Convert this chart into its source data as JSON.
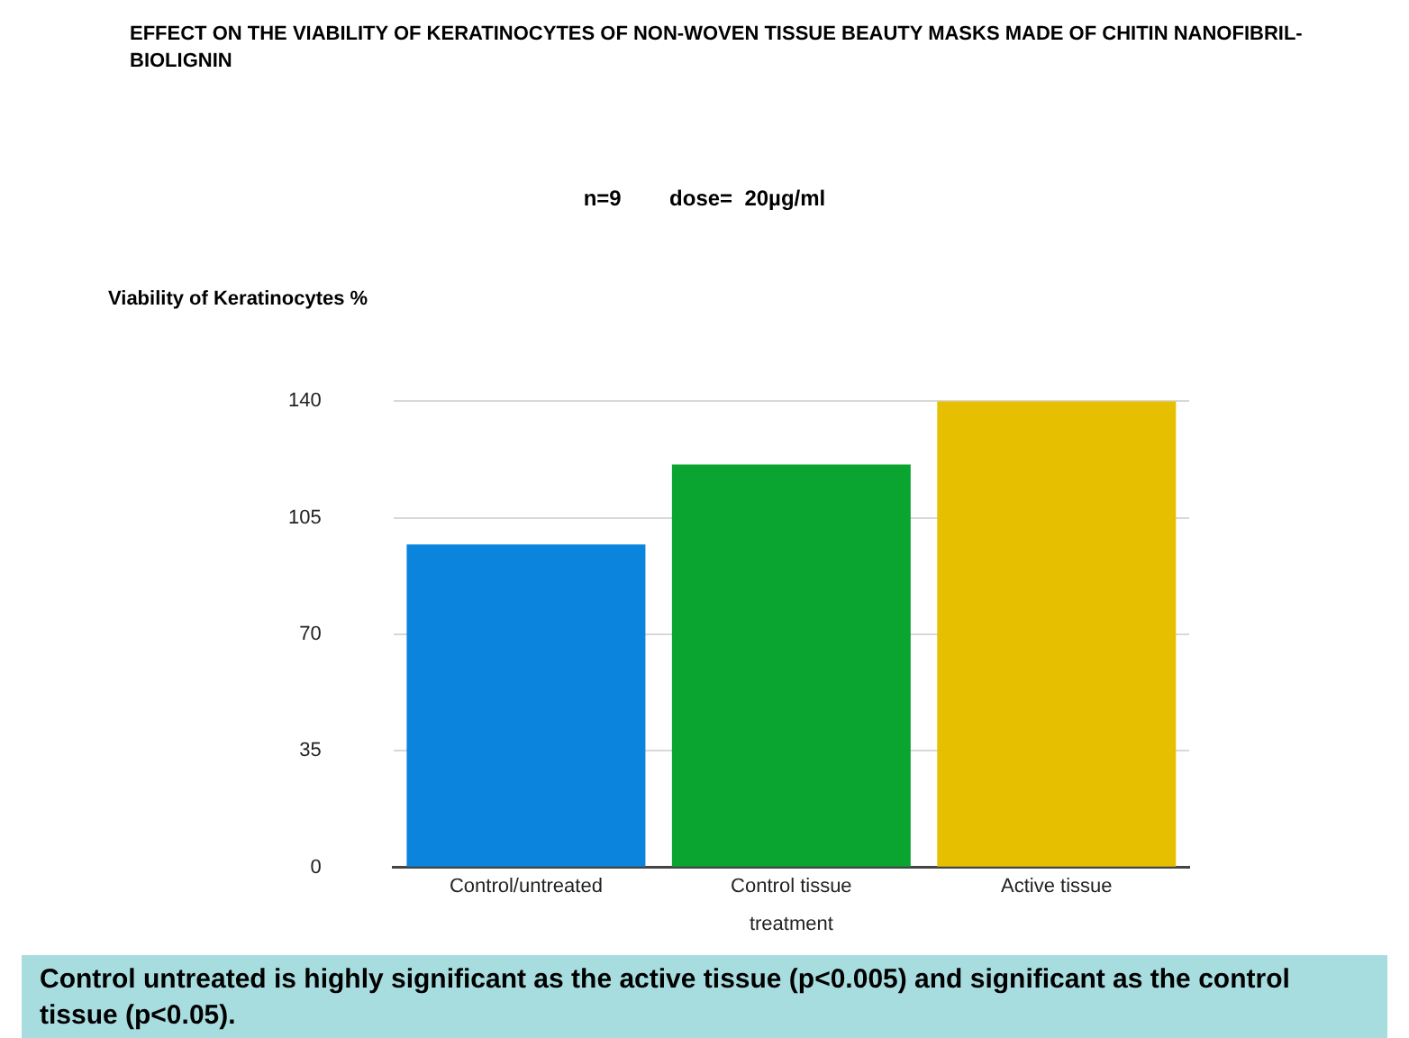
{
  "chart_data": {
    "type": "bar",
    "title": "EFFECT ON THE VIABILITY OF KERATINOCYTES OF NON-WOVEN TISSUE BEAUTY MASKS MADE OF CHITIN NANOFIBRIL-BIOLIGNIN",
    "subtitle": "n=9        dose=  20µg/ml",
    "ylabel": "Viability of Keratinocytes %",
    "xlabel": "treatment",
    "categories": [
      "Control/untreated",
      "Control tissue",
      "Active tissue"
    ],
    "values": [
      97,
      121,
      140
    ],
    "colors": [
      "#0a84dc",
      "#0aa530",
      "#e6c000"
    ],
    "ylim": [
      0,
      140
    ],
    "yticks": [
      0,
      35,
      70,
      105,
      140
    ],
    "grid": "y",
    "legend": false,
    "annotations": [
      "Control untreated is highly significant as the active tissue (p<0.005) and significant as the control tissue (p<0.05)."
    ]
  }
}
